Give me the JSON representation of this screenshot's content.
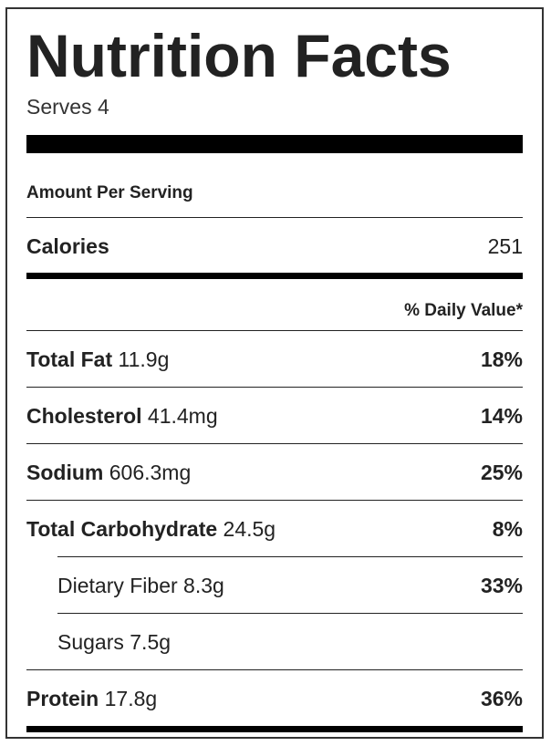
{
  "label": {
    "title": "Nutrition Facts",
    "serves": "Serves 4",
    "amount_per_serving": "Amount Per Serving",
    "calories": {
      "label": "Calories",
      "value": "251"
    },
    "daily_value_header": "% Daily Value*",
    "nutrients": [
      {
        "name": "Total Fat",
        "amount": "11.9g",
        "dv": "18%"
      },
      {
        "name": "Cholesterol",
        "amount": "41.4mg",
        "dv": "14%"
      },
      {
        "name": "Sodium",
        "amount": "606.3mg",
        "dv": "25%"
      },
      {
        "name": "Total Carbohydrate",
        "amount": "24.5g",
        "dv": "8%"
      },
      {
        "name": "Dietary Fiber",
        "amount": "8.3g",
        "dv": "33%"
      },
      {
        "name": "Sugars",
        "amount": "7.5g",
        "dv": ""
      },
      {
        "name": "Protein",
        "amount": "17.8g",
        "dv": "36%"
      }
    ]
  }
}
